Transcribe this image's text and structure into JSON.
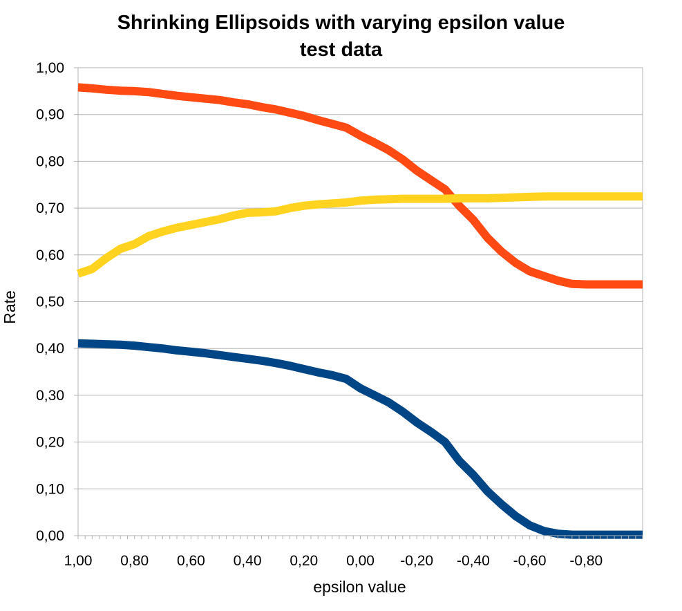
{
  "chart_data": {
    "type": "line",
    "title": "Shrinking Ellipsoids with varying epsilon value",
    "subtitle": "test data",
    "xlabel": "epsilon value",
    "ylabel": "Rate",
    "xlim": [
      1.0,
      -1.0
    ],
    "ylim": [
      0.0,
      1.0
    ],
    "x_reversed": true,
    "grid": "horizontal",
    "legend": "none",
    "x_tick_labels": [
      "1,00",
      "0,80",
      "0,60",
      "0,40",
      "0,20",
      "0,00",
      "-0,20",
      "-0,40",
      "-0,60",
      "-0,80"
    ],
    "x_tick_values": [
      1.0,
      0.8,
      0.6,
      0.4,
      0.2,
      0.0,
      -0.2,
      -0.4,
      -0.6,
      -0.8
    ],
    "y_tick_labels": [
      "0,00",
      "0,10",
      "0,20",
      "0,30",
      "0,40",
      "0,50",
      "0,60",
      "0,70",
      "0,80",
      "0,90",
      "1,00"
    ],
    "y_tick_values": [
      0.0,
      0.1,
      0.2,
      0.3,
      0.4,
      0.5,
      0.6,
      0.7,
      0.8,
      0.9,
      1.0
    ],
    "series": [
      {
        "color": "#ff4a14",
        "x": [
          1.0,
          0.95,
          0.9,
          0.85,
          0.8,
          0.75,
          0.7,
          0.65,
          0.6,
          0.55,
          0.5,
          0.45,
          0.4,
          0.35,
          0.3,
          0.25,
          0.2,
          0.15,
          0.1,
          0.05,
          0.0,
          -0.05,
          -0.1,
          -0.15,
          -0.2,
          -0.25,
          -0.3,
          -0.35,
          -0.4,
          -0.45,
          -0.5,
          -0.55,
          -0.6,
          -0.65,
          -0.7,
          -0.75,
          -0.8,
          -0.85,
          -0.9,
          -0.95,
          -1.0
        ],
        "y": [
          0.958,
          0.956,
          0.953,
          0.951,
          0.95,
          0.948,
          0.944,
          0.94,
          0.937,
          0.934,
          0.931,
          0.926,
          0.922,
          0.916,
          0.911,
          0.904,
          0.897,
          0.888,
          0.88,
          0.872,
          0.855,
          0.84,
          0.824,
          0.804,
          0.78,
          0.76,
          0.74,
          0.705,
          0.675,
          0.637,
          0.607,
          0.583,
          0.565,
          0.555,
          0.545,
          0.538,
          0.537,
          0.537,
          0.537,
          0.537,
          0.537
        ]
      },
      {
        "color": "#ffd320",
        "x": [
          1.0,
          0.95,
          0.9,
          0.85,
          0.8,
          0.75,
          0.7,
          0.65,
          0.6,
          0.55,
          0.5,
          0.45,
          0.4,
          0.35,
          0.3,
          0.25,
          0.2,
          0.15,
          0.1,
          0.05,
          0.0,
          -0.05,
          -0.1,
          -0.15,
          -0.2,
          -0.25,
          -0.3,
          -0.35,
          -0.4,
          -0.45,
          -0.5,
          -0.55,
          -0.6,
          -0.65,
          -0.7,
          -0.75,
          -0.8,
          -0.85,
          -0.9,
          -0.95,
          -1.0
        ],
        "y": [
          0.56,
          0.57,
          0.593,
          0.613,
          0.623,
          0.64,
          0.65,
          0.658,
          0.664,
          0.67,
          0.676,
          0.684,
          0.69,
          0.691,
          0.693,
          0.7,
          0.705,
          0.708,
          0.71,
          0.712,
          0.716,
          0.718,
          0.719,
          0.72,
          0.72,
          0.72,
          0.72,
          0.721,
          0.721,
          0.721,
          0.722,
          0.723,
          0.724,
          0.725,
          0.725,
          0.725,
          0.725,
          0.725,
          0.725,
          0.725,
          0.725
        ]
      },
      {
        "color": "#004586",
        "x": [
          1.0,
          0.95,
          0.9,
          0.85,
          0.8,
          0.75,
          0.7,
          0.65,
          0.6,
          0.55,
          0.5,
          0.45,
          0.4,
          0.35,
          0.3,
          0.25,
          0.2,
          0.15,
          0.1,
          0.05,
          0.0,
          -0.05,
          -0.1,
          -0.15,
          -0.2,
          -0.25,
          -0.3,
          -0.35,
          -0.4,
          -0.45,
          -0.5,
          -0.55,
          -0.6,
          -0.65,
          -0.7,
          -0.75,
          -0.8,
          -0.85,
          -0.9,
          -0.95,
          -1.0
        ],
        "y": [
          0.411,
          0.41,
          0.409,
          0.408,
          0.406,
          0.403,
          0.4,
          0.396,
          0.393,
          0.39,
          0.386,
          0.382,
          0.378,
          0.374,
          0.369,
          0.363,
          0.356,
          0.349,
          0.343,
          0.335,
          0.315,
          0.3,
          0.285,
          0.265,
          0.242,
          0.222,
          0.2,
          0.16,
          0.13,
          0.095,
          0.067,
          0.042,
          0.022,
          0.01,
          0.004,
          0.002,
          0.002,
          0.002,
          0.002,
          0.002,
          0.002
        ]
      }
    ]
  }
}
